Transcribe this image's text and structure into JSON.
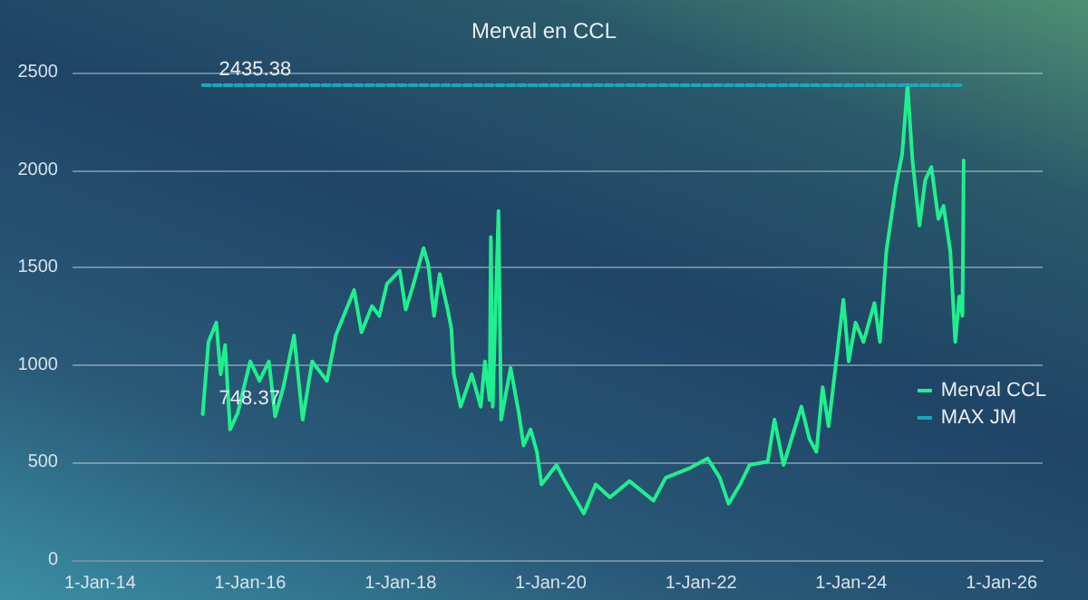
{
  "chart_data": {
    "type": "line",
    "title": "Merval en CCL",
    "xlim": [
      "2013-08-20",
      "2026-07-20"
    ],
    "xticks": [
      {
        "value": "2014-01-01",
        "label": "1-Jan-14"
      },
      {
        "value": "2016-01-01",
        "label": "1-Jan-16"
      },
      {
        "value": "2018-01-01",
        "label": "1-Jan-18"
      },
      {
        "value": "2020-01-01",
        "label": "1-Jan-20"
      },
      {
        "value": "2022-01-01",
        "label": "1-Jan-22"
      },
      {
        "value": "2024-01-01",
        "label": "1-Jan-24"
      },
      {
        "value": "2026-01-01",
        "label": "1-Jan-26"
      }
    ],
    "ylim": [
      0,
      2500
    ],
    "yticks": [
      0,
      500,
      1000,
      1500,
      2000,
      2500
    ],
    "grid": "y",
    "legend": "right",
    "marker": "none",
    "series": [
      {
        "name": "Merval CCL",
        "color": "#1ef08e",
        "line_style": "solid",
        "x": [
          "2015-05-15",
          "2015-06-12",
          "2015-07-20",
          "2015-08-10",
          "2015-09-01",
          "2015-09-25",
          "2015-11-01",
          "2016-01-01",
          "2016-02-15",
          "2016-04-01",
          "2016-05-01",
          "2016-06-10",
          "2016-08-01",
          "2016-09-12",
          "2016-10-28",
          "2017-01-08",
          "2017-02-20",
          "2017-05-20",
          "2017-06-25",
          "2017-08-15",
          "2017-09-20",
          "2017-10-27",
          "2017-12-28",
          "2018-01-26",
          "2018-03-01",
          "2018-04-23",
          "2018-05-15",
          "2018-06-13",
          "2018-07-10",
          "2018-08-18",
          "2018-09-05",
          "2018-09-17",
          "2018-10-20",
          "2018-12-13",
          "2019-01-26",
          "2019-02-15",
          "2019-03-10",
          "2019-03-16",
          "2019-03-25",
          "2019-04-22",
          "2019-05-05",
          "2019-06-20",
          "2019-07-30",
          "2019-08-22",
          "2019-09-25",
          "2019-10-26",
          "2019-11-17",
          "2020-01-29",
          "2020-03-10",
          "2020-06-10",
          "2020-08-07",
          "2020-10-15",
          "2021-01-18",
          "2021-05-15",
          "2021-07-13",
          "2021-11-06",
          "2022-02-02",
          "2022-04-02",
          "2022-05-15",
          "2022-07-10",
          "2022-08-25",
          "2022-11-21",
          "2022-12-24",
          "2023-02-06",
          "2023-05-04",
          "2023-06-12",
          "2023-07-16",
          "2023-08-15",
          "2023-09-13",
          "2023-10-20",
          "2023-11-24",
          "2023-12-20",
          "2024-01-22",
          "2024-03-01",
          "2024-04-23",
          "2024-05-20",
          "2024-06-20",
          "2024-08-05",
          "2024-09-05",
          "2024-10-01",
          "2024-10-25",
          "2024-11-28",
          "2024-12-26",
          "2025-01-25",
          "2025-02-28",
          "2025-03-25",
          "2025-04-27",
          "2025-05-21",
          "2025-06-10",
          "2025-06-25",
          "2025-07-01"
        ],
        "values": [
          748.37,
          1119,
          1218,
          953,
          1102,
          670,
          754,
          1019,
          919,
          1019,
          737,
          886,
          1152,
          720,
          1019,
          919,
          1152,
          1384,
          1168,
          1302,
          1252,
          1417,
          1484,
          1285,
          1401,
          1600,
          1517,
          1252,
          1467,
          1285,
          1185,
          953,
          787,
          953,
          787,
          1019,
          820,
          1657,
          787,
          1790,
          720,
          986,
          754,
          588,
          670,
          555,
          388,
          488,
          405,
          239,
          388,
          322,
          405,
          305,
          422,
          471,
          521,
          422,
          289,
          388,
          488,
          505,
          720,
          488,
          787,
          621,
          555,
          886,
          687,
          1019,
          1335,
          1019,
          1218,
          1119,
          1318,
          1119,
          1584,
          1916,
          2082,
          2435.38,
          2049,
          1716,
          1949,
          2015,
          1750,
          1816,
          1584,
          1119,
          1352,
          1252,
          2049
        ],
        "value_labels": [
          "748.37",
          null,
          null,
          null,
          null,
          null,
          null,
          null,
          null,
          null,
          null,
          null,
          null,
          null,
          null,
          null,
          null,
          null,
          null,
          null,
          null,
          null,
          null,
          null,
          null,
          null,
          null,
          null,
          null,
          null,
          null,
          null,
          null,
          null,
          null,
          null,
          null,
          null,
          null,
          null,
          null,
          null,
          null,
          null,
          null,
          null,
          null,
          null,
          null,
          null,
          null,
          null,
          null,
          null,
          null,
          null,
          null,
          null,
          null,
          null,
          null,
          null,
          null,
          null,
          null,
          null,
          null,
          null,
          null,
          null,
          null,
          null,
          null,
          null,
          null,
          null,
          null,
          null,
          null,
          null,
          null,
          null,
          null,
          null,
          null,
          null,
          null,
          null,
          null,
          null,
          null
        ]
      },
      {
        "name": "MAX JM",
        "color": "#17a9bd",
        "line_style": "dashed",
        "x": [
          "2015-05-15",
          "2025-07-01"
        ],
        "values": [
          2435.38,
          2435.38
        ],
        "value_labels": [
          "2435.38",
          null
        ]
      }
    ]
  }
}
